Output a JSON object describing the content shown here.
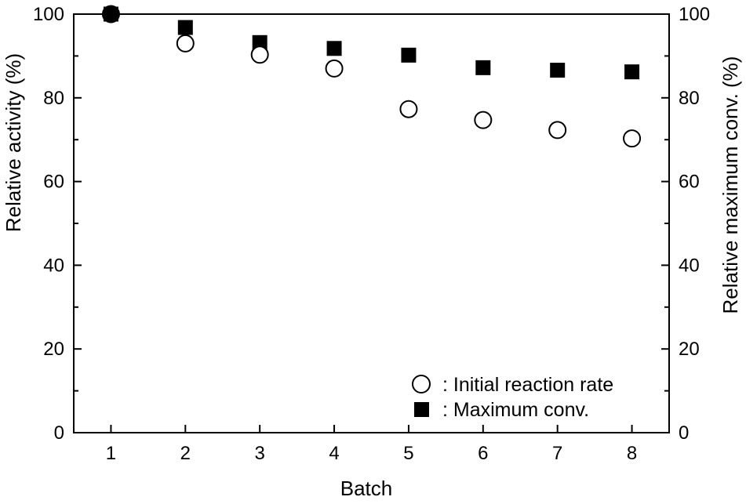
{
  "chart_data": {
    "type": "scatter",
    "categories": [
      "1",
      "2",
      "3",
      "4",
      "5",
      "6",
      "7",
      "8"
    ],
    "x": [
      1,
      2,
      3,
      4,
      5,
      6,
      7,
      8
    ],
    "xlabel": "Batch",
    "ylabel": "Relative activity (%)",
    "y2label": "Relative maximum conv. (%)",
    "xlim": [
      0.5,
      8.5
    ],
    "ylim": [
      0,
      100
    ],
    "y2lim": [
      0,
      100
    ],
    "yticks": [
      0,
      20,
      40,
      60,
      80,
      100
    ],
    "grid": false,
    "legend_position": "bottom-right",
    "series": [
      {
        "name": ": Initial reaction rate",
        "marker": "open-circle",
        "axis": "left",
        "values": [
          100,
          93,
          90.3,
          87,
          77.3,
          74.7,
          72.3,
          70.3
        ]
      },
      {
        "name": ": Maximum conv.",
        "marker": "filled-square",
        "axis": "right",
        "values": [
          100,
          96.8,
          93.2,
          91.8,
          90.2,
          87.2,
          86.6,
          86.2
        ]
      }
    ]
  }
}
